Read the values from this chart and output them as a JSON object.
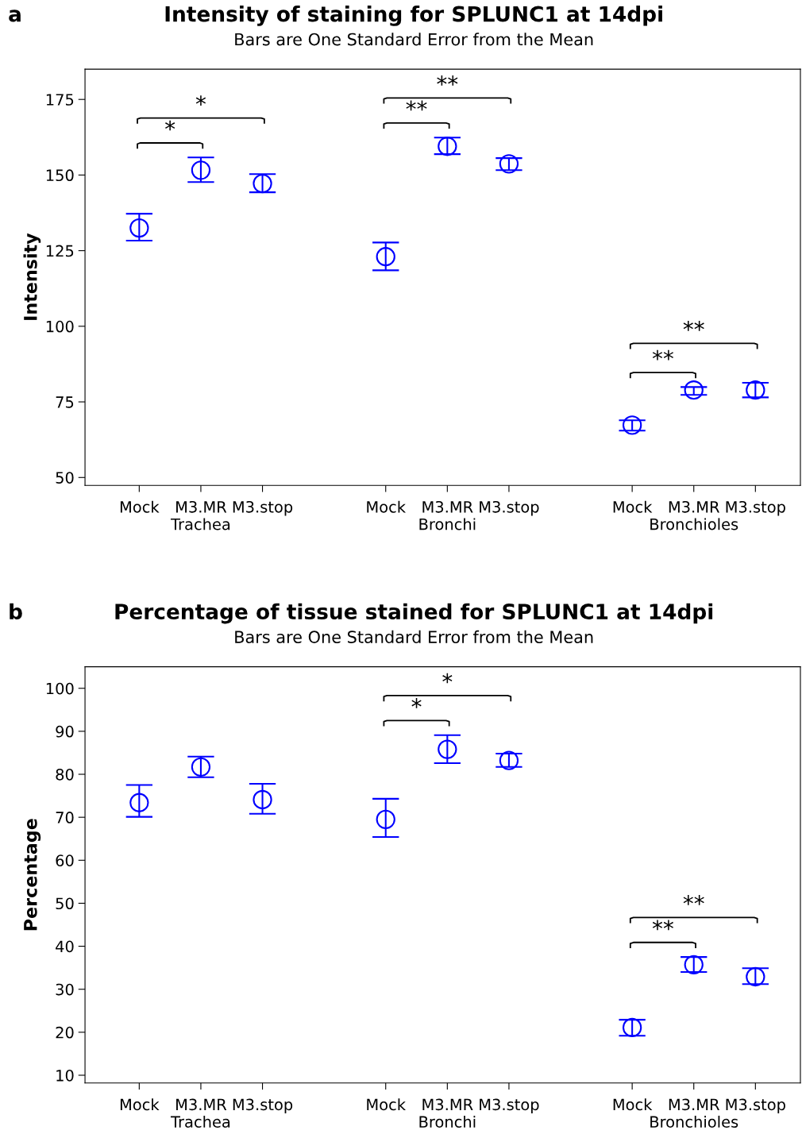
{
  "chart_data": [
    {
      "type": "scatter",
      "title": "Intensity of staining for SPLUNC1 at 14dpi",
      "subtitle": "Bars are One Standard Error from the Mean",
      "ylabel": "Intensity",
      "categories": [
        "Mock",
        "M3.MR\nTrachea",
        "M3.stop",
        null,
        "Mock",
        "M3.MR\nBronchi",
        "M3.stop",
        null,
        "Mock",
        "M3.MR\nBronchioles",
        "M3.stop"
      ],
      "values": [
        132.5,
        151.6,
        147.2,
        null,
        123.0,
        159.5,
        153.7,
        null,
        67.3,
        78.9,
        78.9
      ],
      "errors": [
        [
          128.3,
          137.2
        ],
        [
          147.7,
          155.8
        ],
        [
          144.3,
          150.3
        ],
        null,
        [
          118.5,
          127.7
        ],
        [
          156.9,
          162.4
        ],
        [
          151.6,
          155.6
        ],
        null,
        [
          65.5,
          68.9
        ],
        [
          77.3,
          79.9
        ],
        [
          76.5,
          81.3
        ]
      ],
      "color": "#0000ff",
      "marker": "circle",
      "ylim": [
        47.4,
        185
      ],
      "yticks": [
        50,
        75,
        100,
        125,
        150,
        175
      ],
      "grid": false,
      "legend": false,
      "annotations": [
        "a",
        "*",
        "*",
        "**",
        "**",
        "**",
        "**"
      ]
    },
    {
      "type": "scatter",
      "title": "Percentage of tissue stained for SPLUNC1 at 14dpi",
      "subtitle": "Bars are One Standard Error from the Mean",
      "ylabel": "Percentage",
      "categories": [
        "Mock",
        "M3.MR\nTrachea",
        "M3.stop",
        null,
        "Mock",
        "M3.MR\nBronchi",
        "M3.stop",
        null,
        "Mock",
        "M3.MR\nBronchioles",
        "M3.stop"
      ],
      "values": [
        73.4,
        81.7,
        74.1,
        null,
        69.5,
        85.8,
        83.2,
        null,
        21.1,
        35.7,
        32.9
      ],
      "errors": [
        [
          70.1,
          77.5
        ],
        [
          79.3,
          84.1
        ],
        [
          70.8,
          77.8
        ],
        null,
        [
          65.4,
          74.3
        ],
        [
          82.6,
          89.1
        ],
        [
          81.7,
          84.8
        ],
        null,
        [
          19.2,
          22.9
        ],
        [
          34.0,
          37.5
        ],
        [
          31.2,
          34.9
        ]
      ],
      "color": "#0000ff",
      "marker": "circle",
      "ylim": [
        8.2,
        105
      ],
      "yticks": [
        10,
        20,
        30,
        40,
        50,
        60,
        70,
        80,
        90,
        100
      ],
      "grid": false,
      "legend": false,
      "annotations": [
        "b",
        "*",
        "*",
        "**",
        "**"
      ]
    }
  ]
}
